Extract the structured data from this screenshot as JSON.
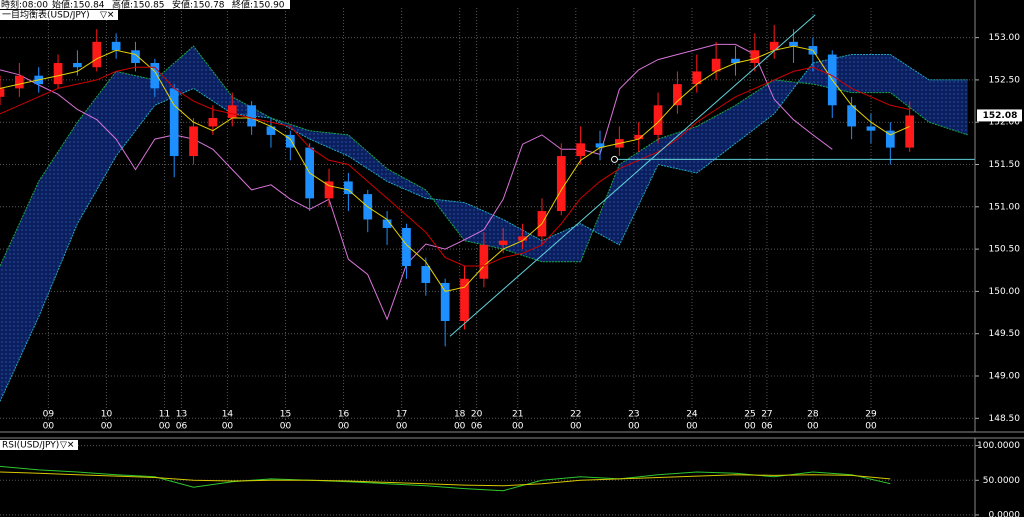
{
  "header": [
    "時刻:08:00",
    "始値:150.84",
    "高値:150.85",
    "安値:150.78",
    "終値:150.90"
  ],
  "chart_data": [
    {
      "type": "candlestick",
      "title": "一目均衡表(USD/JPY)",
      "x": [
        0,
        8,
        16,
        24,
        32,
        40,
        48,
        56,
        64,
        72,
        80,
        88,
        96,
        104,
        112,
        120,
        128,
        136,
        144,
        152,
        160,
        168,
        176,
        184,
        192,
        200,
        208,
        216,
        224,
        232,
        240,
        248,
        256,
        264,
        272,
        280,
        288,
        296,
        304,
        312,
        320,
        328,
        336,
        344,
        352,
        360,
        368,
        376
      ],
      "open": [
        152.3,
        152.4,
        152.55,
        152.45,
        152.7,
        152.65,
        152.95,
        152.85,
        152.7,
        152.4,
        151.6,
        151.95,
        152.05,
        152.2,
        151.95,
        151.85,
        151.7,
        151.1,
        151.3,
        151.15,
        150.85,
        150.75,
        150.3,
        150.1,
        149.65,
        150.15,
        150.55,
        150.6,
        150.65,
        150.95,
        151.6,
        151.75,
        151.7,
        151.8,
        151.85,
        152.2,
        152.45,
        152.6,
        152.75,
        152.7,
        152.85,
        152.95,
        152.9,
        152.8,
        152.2,
        151.95,
        151.9,
        151.7
      ],
      "high": [
        152.55,
        152.7,
        152.65,
        152.8,
        152.85,
        153.1,
        153.05,
        152.95,
        152.75,
        152.45,
        152.05,
        152.2,
        152.35,
        152.25,
        152.05,
        151.9,
        151.75,
        151.45,
        151.4,
        151.2,
        150.95,
        150.8,
        150.4,
        150.15,
        150.3,
        150.7,
        150.75,
        150.8,
        151.1,
        151.75,
        151.95,
        151.9,
        151.95,
        152.0,
        152.35,
        152.6,
        152.8,
        152.95,
        152.9,
        153.05,
        153.15,
        153.1,
        153.0,
        152.85,
        152.3,
        152.1,
        152.0,
        152.25
      ],
      "low": [
        152.2,
        152.3,
        152.35,
        152.4,
        152.55,
        152.6,
        152.75,
        152.6,
        152.3,
        151.35,
        151.5,
        151.85,
        151.95,
        151.85,
        151.7,
        151.55,
        150.95,
        151.0,
        150.95,
        150.7,
        150.55,
        150.15,
        149.95,
        149.35,
        149.55,
        150.05,
        150.45,
        150.5,
        150.55,
        150.9,
        151.5,
        151.55,
        151.6,
        151.65,
        151.75,
        152.1,
        152.35,
        152.5,
        152.55,
        152.6,
        152.75,
        152.7,
        152.6,
        152.05,
        151.8,
        151.75,
        151.5,
        151.65
      ],
      "close": [
        152.4,
        152.55,
        152.45,
        152.7,
        152.65,
        152.95,
        152.85,
        152.7,
        152.4,
        151.6,
        151.95,
        152.05,
        152.2,
        151.95,
        151.85,
        151.7,
        151.1,
        151.3,
        151.15,
        150.85,
        150.75,
        150.3,
        150.1,
        149.65,
        150.15,
        150.55,
        150.6,
        150.65,
        150.95,
        151.6,
        151.75,
        151.7,
        151.8,
        151.85,
        152.2,
        152.45,
        152.6,
        152.75,
        152.7,
        152.85,
        152.95,
        152.9,
        152.8,
        152.2,
        151.95,
        151.9,
        151.7,
        152.08
      ],
      "up_color": "#ff1a1a",
      "down_color": "#1e8fff",
      "conversion_line": {
        "color": "#e6d200",
        "values": [
          152.4,
          152.45,
          152.5,
          152.55,
          152.6,
          152.75,
          152.85,
          152.8,
          152.6,
          152.2,
          152.0,
          151.9,
          152.05,
          152.05,
          151.95,
          151.8,
          151.4,
          151.25,
          151.2,
          151.0,
          150.85,
          150.55,
          150.35,
          150.0,
          150.05,
          150.3,
          150.5,
          150.6,
          150.8,
          151.2,
          151.55,
          151.7,
          151.75,
          151.8,
          152.0,
          152.25,
          152.45,
          152.6,
          152.7,
          152.75,
          152.85,
          152.9,
          152.85,
          152.5,
          152.2,
          152.0,
          151.85,
          151.95
        ]
      },
      "base_line": {
        "color": "#d00000",
        "values": [
          152.1,
          152.2,
          152.3,
          152.4,
          152.45,
          152.5,
          152.6,
          152.65,
          152.65,
          152.4,
          152.25,
          152.15,
          152.1,
          152.05,
          152.0,
          151.95,
          151.7,
          151.55,
          151.5,
          151.3,
          151.1,
          150.9,
          150.7,
          150.4,
          150.3,
          150.3,
          150.4,
          150.45,
          150.55,
          150.8,
          151.1,
          151.3,
          151.45,
          151.55,
          151.65,
          151.8,
          152.0,
          152.15,
          152.3,
          152.4,
          152.5,
          152.6,
          152.65,
          152.55,
          152.4,
          152.3,
          152.2,
          152.15
        ]
      },
      "lagging_span": {
        "color": "#d873d8",
        "x": [
          0,
          8,
          16,
          24,
          32,
          40,
          48,
          56,
          64,
          72,
          80,
          88,
          96,
          104,
          112,
          120,
          128,
          136,
          144,
          152,
          160,
          168,
          176,
          184,
          192,
          200,
          208,
          216,
          224,
          232,
          240,
          248,
          256,
          264,
          272,
          280,
          288,
          296,
          304,
          312,
          320,
          328,
          336,
          344
        ],
        "values": [
          152.62,
          152.56,
          152.44,
          152.33,
          152.15,
          152.03,
          151.8,
          151.44,
          151.8,
          151.85,
          151.8,
          151.68,
          151.44,
          151.2,
          151.26,
          151.09,
          150.97,
          151.09,
          150.38,
          150.2,
          149.67,
          150.32,
          150.56,
          150.5,
          150.61,
          150.73,
          151.09,
          151.74,
          151.85,
          151.68,
          151.68,
          151.62,
          152.39,
          152.62,
          152.74,
          152.8,
          152.86,
          152.92,
          152.92,
          152.8,
          152.27,
          152.03,
          151.85,
          151.68
        ]
      },
      "cloud": {
        "x": [
          0,
          16,
          32,
          48,
          64,
          80,
          96,
          112,
          128,
          144,
          160,
          176,
          192,
          208,
          224,
          240,
          256,
          272,
          288,
          304,
          320,
          336,
          352,
          368,
          384,
          400
        ],
        "fill": "#0b1f5e",
        "dot_color": "#3a70d8",
        "span_a": {
          "color": "#18a848",
          "values": [
            150.3,
            151.3,
            152.0,
            152.6,
            152.5,
            152.9,
            152.3,
            152.05,
            151.9,
            151.85,
            151.45,
            151.2,
            150.6,
            150.5,
            150.35,
            150.35,
            151.5,
            151.8,
            151.95,
            152.2,
            152.5,
            152.45,
            152.35,
            152.35,
            152.0,
            151.85
          ]
        },
        "span_b": {
          "color": "#20a8c0",
          "values": [
            148.7,
            149.7,
            150.8,
            151.6,
            152.2,
            152.4,
            152.1,
            152.05,
            151.8,
            151.6,
            151.3,
            151.1,
            151.05,
            150.85,
            150.6,
            150.8,
            150.55,
            151.5,
            151.4,
            151.75,
            152.1,
            152.7,
            152.8,
            152.8,
            152.5,
            152.5
          ]
        }
      },
      "trendline": {
        "color": "#5fd0d8",
        "x": [
          186,
          337
        ],
        "y": [
          149.47,
          153.27
        ]
      },
      "hline": {
        "color": "#5fd0d8",
        "value": 151.56,
        "x_from": 254
      },
      "last_price": 152.08,
      "xlim": [
        0,
        403
      ],
      "ylim": [
        148.35,
        153.35
      ],
      "grid": true,
      "yticks": [
        {
          "value": 148.5,
          "label": "148.50"
        },
        {
          "value": 149,
          "label": "149.00"
        },
        {
          "value": 149.5,
          "label": "149.50"
        },
        {
          "value": 150,
          "label": "150.00"
        },
        {
          "value": 150.5,
          "label": "150.50"
        },
        {
          "value": 151,
          "label": "151.00"
        },
        {
          "value": 151.5,
          "label": "151.50"
        },
        {
          "value": 152,
          "label": "152.00"
        },
        {
          "value": 152.5,
          "label": "152.50"
        },
        {
          "value": 153,
          "label": "153.00"
        }
      ],
      "xticks": [
        {
          "value": 20,
          "label": "09",
          "sublabel": "00"
        },
        {
          "value": 44,
          "label": "10",
          "sublabel": "00"
        },
        {
          "value": 68,
          "label": "11",
          "sublabel": "00"
        },
        {
          "value": 75,
          "label": "13",
          "sublabel": "06"
        },
        {
          "value": 94,
          "label": "14",
          "sublabel": "00"
        },
        {
          "value": 118,
          "label": "15",
          "sublabel": "00"
        },
        {
          "value": 142,
          "label": "16",
          "sublabel": "00"
        },
        {
          "value": 166,
          "label": "17",
          "sublabel": "00"
        },
        {
          "value": 190,
          "label": "18",
          "sublabel": "00"
        },
        {
          "value": 197,
          "label": "20",
          "sublabel": "06"
        },
        {
          "value": 214,
          "label": "21",
          "sublabel": "00"
        },
        {
          "value": 238,
          "label": "22",
          "sublabel": "00"
        },
        {
          "value": 262,
          "label": "23",
          "sublabel": "00"
        },
        {
          "value": 286,
          "label": "24",
          "sublabel": "00"
        },
        {
          "value": 310,
          "label": "25",
          "sublabel": "00"
        },
        {
          "value": 317,
          "label": "27",
          "sublabel": "06"
        },
        {
          "value": 336,
          "label": "28",
          "sublabel": "00"
        },
        {
          "value": 360,
          "label": "29",
          "sublabel": "00"
        }
      ]
    },
    {
      "type": "line",
      "title": "RSI(USD/JPY)",
      "x": [
        0,
        16,
        32,
        48,
        64,
        80,
        96,
        112,
        128,
        144,
        160,
        176,
        192,
        208,
        224,
        240,
        256,
        272,
        288,
        304,
        320,
        336,
        352,
        368
      ],
      "series": [
        {
          "color": "#2ec82e",
          "values": [
            70,
            65,
            62,
            58,
            55,
            40,
            48,
            52,
            50,
            48,
            45,
            42,
            38,
            35,
            50,
            55,
            52,
            58,
            62,
            60,
            55,
            62,
            58,
            45
          ]
        },
        {
          "color": "#d8c800",
          "values": [
            62,
            60,
            58,
            56,
            54,
            50,
            49,
            50,
            50,
            49,
            47,
            45,
            43,
            42,
            45,
            50,
            52,
            54,
            56,
            58,
            57,
            58,
            57,
            52
          ]
        }
      ],
      "xlim": [
        0,
        403
      ],
      "ylim": [
        -3,
        111
      ],
      "grid": true,
      "yticks": [
        {
          "value": 0,
          "label": "0.0000"
        },
        {
          "value": 50,
          "label": "50.0000"
        },
        {
          "value": 100,
          "label": "100.0000"
        }
      ]
    }
  ]
}
